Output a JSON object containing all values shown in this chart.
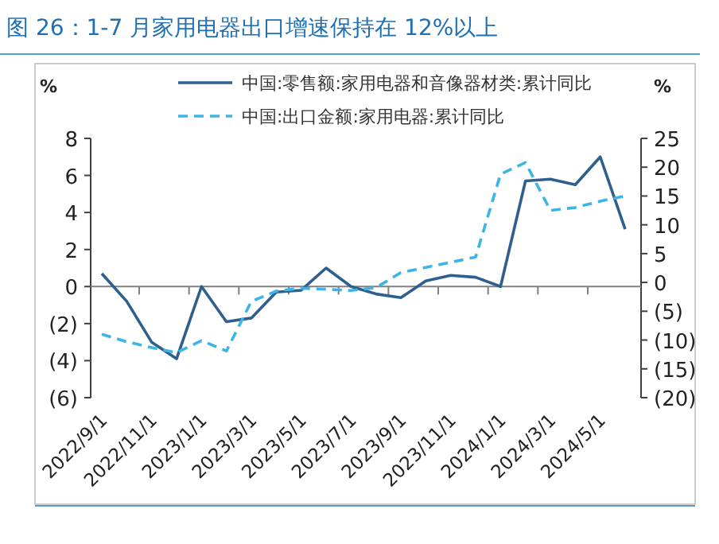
{
  "chart_data": {
    "type": "line",
    "title": "图 26：1-7 月家用电器出口增速保持在 12%以上",
    "ylabel": "%",
    "y2label": "%",
    "categories": [
      "2022/9/1",
      null,
      "2022/11/1",
      null,
      "2023/1/1",
      null,
      "2023/3/1",
      null,
      "2023/5/1",
      null,
      "2023/7/1",
      null,
      "2023/9/1",
      null,
      "2023/11/1",
      null,
      "2024/1/1",
      null,
      "2024/3/1",
      null,
      "2024/5/1",
      null
    ],
    "series": [
      {
        "name": "中国:零售额:家用电器和音像器材类:累计同比",
        "color": "#2f5f8f",
        "line_style": "solid",
        "values": [
          0.7,
          -0.8,
          -3.0,
          -3.9,
          0,
          -1.9,
          -1.7,
          -0.3,
          -0.2,
          1.0,
          0,
          -0.4,
          -0.6,
          0.3,
          0.6,
          0.5,
          0,
          5.7,
          5.8,
          5.5,
          7.0,
          3.1
        ]
      },
      {
        "name": "中国:出口金额:家用电器:累计同比",
        "color": "#3cb4e6",
        "line_style": "dashed",
        "axis": "y2",
        "values": [
          -9,
          -10.3,
          -11.3,
          -12.2,
          -10.1,
          -11.9,
          -3.3,
          -1.5,
          -1,
          -1.2,
          -1.4,
          -0.9,
          1.7,
          2.6,
          3.5,
          4.4,
          18.8,
          20.8,
          12.5,
          13,
          14.1,
          15
        ]
      }
    ],
    "ylim": [
      -6,
      8
    ],
    "yticks": [
      {
        "value": -6,
        "label": "(6)"
      },
      {
        "value": -4,
        "label": "(4)"
      },
      {
        "value": -2,
        "label": "(2)"
      },
      0,
      2,
      4,
      6,
      8
    ],
    "y2lim": [
      -20,
      25
    ],
    "y2ticks": [
      {
        "value": -20,
        "label": "(20)"
      },
      {
        "value": -15,
        "label": "(15)"
      },
      {
        "value": -10,
        "label": "(10)"
      },
      {
        "value": -5,
        "label": "(5)"
      },
      0,
      5,
      10,
      15,
      20,
      25
    ],
    "legend": "top",
    "marker": "none"
  }
}
